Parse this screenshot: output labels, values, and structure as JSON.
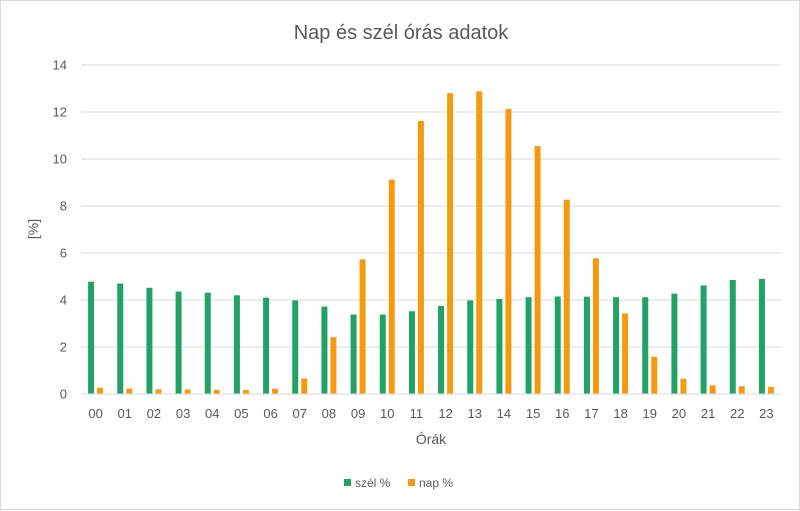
{
  "chart_data": {
    "type": "bar",
    "title": "Nap és szél órás adatok",
    "xlabel": "Órák",
    "ylabel": "[%]",
    "ylim": [
      0,
      14
    ],
    "yticks": [
      "0",
      "2",
      "4",
      "6",
      "8",
      "10",
      "12",
      "14"
    ],
    "grid": true,
    "legend": "bottom",
    "categories": [
      "00",
      "01",
      "02",
      "03",
      "04",
      "05",
      "06",
      "07",
      "08",
      "09",
      "10",
      "11",
      "12",
      "13",
      "14",
      "15",
      "16",
      "17",
      "18",
      "19",
      "20",
      "21",
      "22",
      "23"
    ],
    "series": [
      {
        "name": "szél %",
        "color": "#21a366",
        "values": [
          4.78,
          4.7,
          4.52,
          4.36,
          4.31,
          4.2,
          4.1,
          3.98,
          3.72,
          3.38,
          3.38,
          3.52,
          3.75,
          3.98,
          4.05,
          4.12,
          4.15,
          4.14,
          4.12,
          4.12,
          4.27,
          4.62,
          4.85,
          4.9
        ]
      },
      {
        "name": "nap %",
        "color": "#f59a0f",
        "values": [
          0.27,
          0.23,
          0.2,
          0.19,
          0.18,
          0.17,
          0.22,
          0.66,
          2.42,
          5.73,
          9.12,
          11.62,
          12.8,
          12.88,
          12.13,
          10.55,
          8.27,
          5.78,
          3.43,
          1.58,
          0.65,
          0.37,
          0.33,
          0.3
        ]
      }
    ]
  }
}
